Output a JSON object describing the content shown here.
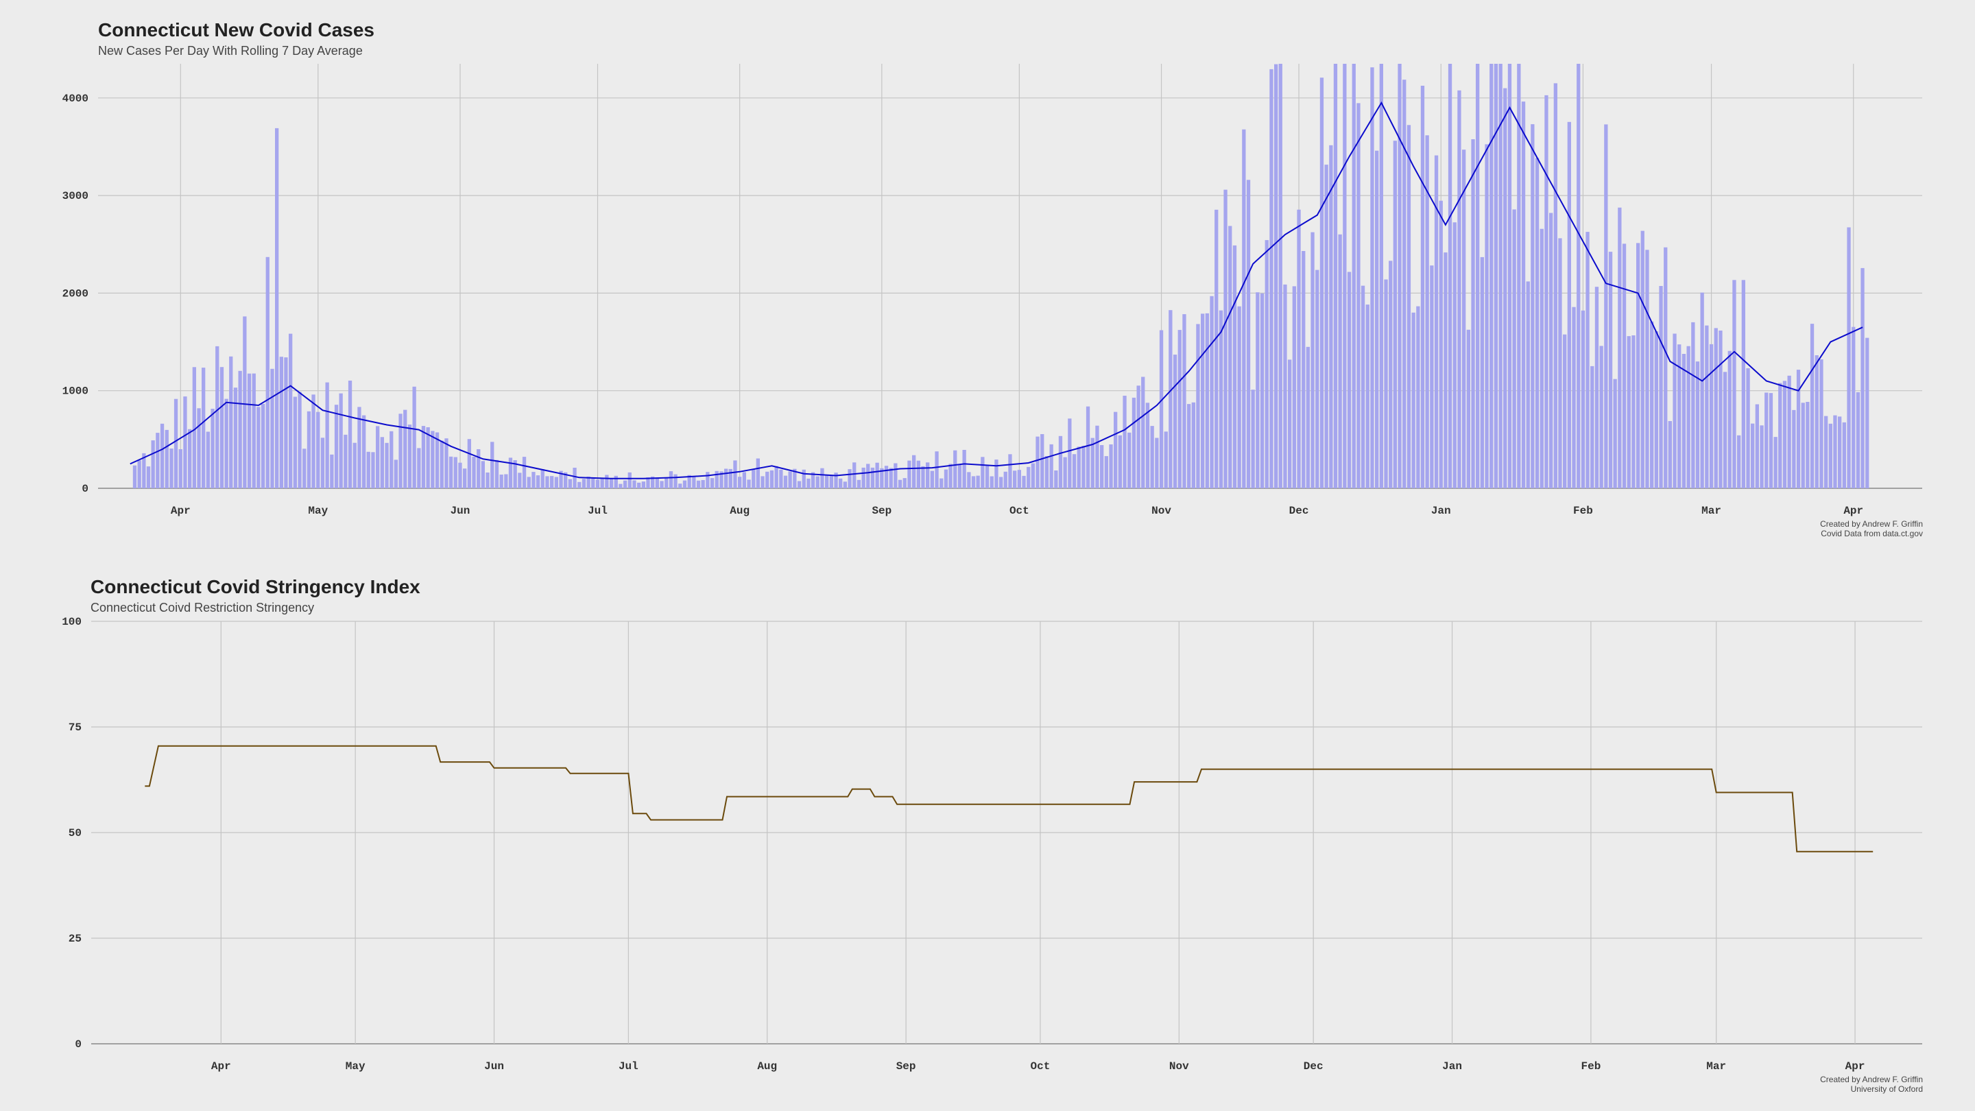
{
  "charts": {
    "cases": {
      "title": "Connecticut New Covid Cases",
      "subtitle": "New Cases Per Day With Rolling 7 Day Average",
      "caption_line1": "Created by Andrew F. Griffin",
      "caption_line2": "Covid Data from data.ct.gov",
      "bar_color": "#a5a5ee",
      "line_color": "#0b0bcc"
    },
    "stringency": {
      "title": "Connecticut Covid Stringency Index",
      "subtitle": "Connecticut Coivd Restriction Stringency",
      "caption_line1": "Created by Andrew F. Griffin",
      "caption_line2": "University of Oxford",
      "line_color": "#6b4a0c"
    }
  },
  "chart_data": [
    {
      "type": "bar",
      "x_axis": "date",
      "x_range": [
        "2020-03-14",
        "2021-04-16"
      ],
      "xticks": [
        "Apr",
        "May",
        "Jun",
        "Jul",
        "Aug",
        "Sep",
        "Oct",
        "Nov",
        "Dec",
        "Jan",
        "Feb",
        "Mar",
        "Apr"
      ],
      "xtick_dates": [
        "2020-04-01",
        "2020-05-01",
        "2020-06-01",
        "2020-07-01",
        "2020-08-01",
        "2020-09-01",
        "2020-10-01",
        "2020-11-01",
        "2020-12-01",
        "2021-01-01",
        "2021-02-01",
        "2021-03-01",
        "2021-04-01"
      ],
      "ylim": [
        0,
        4350
      ],
      "yticks": [
        0,
        1000,
        2000,
        3000,
        4000
      ],
      "grid": true,
      "series": [
        {
          "kind": "bar",
          "keypoints": [
            [
              "2020-03-22",
              200
            ],
            [
              "2020-03-29",
              550
            ],
            [
              "2020-04-05",
              900
            ],
            [
              "2020-04-12",
              1000
            ],
            [
              "2020-04-19",
              950
            ],
            [
              "2020-04-22",
              2050
            ],
            [
              "2020-04-26",
              900
            ],
            [
              "2020-05-03",
              750
            ],
            [
              "2020-05-10",
              700
            ],
            [
              "2020-05-17",
              650
            ],
            [
              "2020-05-24",
              550
            ],
            [
              "2020-05-31",
              380
            ],
            [
              "2020-06-07",
              270
            ],
            [
              "2020-06-14",
              230
            ],
            [
              "2020-06-21",
              160
            ],
            [
              "2020-06-28",
              100
            ],
            [
              "2020-07-05",
              90
            ],
            [
              "2020-07-12",
              90
            ],
            [
              "2020-07-19",
              100
            ],
            [
              "2020-07-26",
              130
            ],
            [
              "2020-08-02",
              170
            ],
            [
              "2020-08-09",
              170
            ],
            [
              "2020-08-16",
              140
            ],
            [
              "2020-08-23",
              130
            ],
            [
              "2020-08-30",
              170
            ],
            [
              "2020-09-06",
              180
            ],
            [
              "2020-09-13",
              210
            ],
            [
              "2020-09-20",
              220
            ],
            [
              "2020-09-27",
              250
            ],
            [
              "2020-10-04",
              280
            ],
            [
              "2020-10-11",
              380
            ],
            [
              "2020-10-18",
              500
            ],
            [
              "2020-10-25",
              650
            ],
            [
              "2020-11-01",
              900
            ],
            [
              "2020-11-08",
              1300
            ],
            [
              "2020-11-15",
              1700
            ],
            [
              "2020-11-22",
              2300
            ],
            [
              "2020-11-29",
              2500
            ],
            [
              "2020-12-06",
              2900
            ],
            [
              "2020-12-13",
              3500
            ],
            [
              "2020-12-20",
              3100
            ],
            [
              "2020-12-27",
              2800
            ],
            [
              "2021-01-03",
              3300
            ],
            [
              "2021-01-10",
              3700
            ],
            [
              "2021-01-17",
              3400
            ],
            [
              "2021-01-24",
              2800
            ],
            [
              "2021-01-31",
              2500
            ],
            [
              "2021-02-07",
              2000
            ],
            [
              "2021-02-14",
              1800
            ],
            [
              "2021-02-21",
              1200
            ],
            [
              "2021-02-28",
              1100
            ],
            [
              "2021-03-07",
              1200
            ],
            [
              "2021-03-14",
              1100
            ],
            [
              "2021-03-21",
              1100
            ],
            [
              "2021-03-28",
              1400
            ],
            [
              "2021-04-04",
              1600
            ]
          ]
        },
        {
          "kind": "line",
          "name": "rolling 7 day average",
          "points": [
            [
              "2020-03-21",
              250
            ],
            [
              "2020-03-28",
              400
            ],
            [
              "2020-04-04",
              600
            ],
            [
              "2020-04-11",
              880
            ],
            [
              "2020-04-18",
              850
            ],
            [
              "2020-04-25",
              1050
            ],
            [
              "2020-05-02",
              800
            ],
            [
              "2020-05-09",
              720
            ],
            [
              "2020-05-16",
              650
            ],
            [
              "2020-05-23",
              600
            ],
            [
              "2020-05-30",
              430
            ],
            [
              "2020-06-06",
              300
            ],
            [
              "2020-06-13",
              250
            ],
            [
              "2020-06-20",
              180
            ],
            [
              "2020-06-27",
              110
            ],
            [
              "2020-07-04",
              100
            ],
            [
              "2020-07-11",
              100
            ],
            [
              "2020-07-18",
              110
            ],
            [
              "2020-07-25",
              130
            ],
            [
              "2020-08-01",
              170
            ],
            [
              "2020-08-08",
              230
            ],
            [
              "2020-08-15",
              150
            ],
            [
              "2020-08-22",
              130
            ],
            [
              "2020-08-29",
              160
            ],
            [
              "2020-09-05",
              200
            ],
            [
              "2020-09-12",
              210
            ],
            [
              "2020-09-19",
              250
            ],
            [
              "2020-09-26",
              230
            ],
            [
              "2020-10-03",
              260
            ],
            [
              "2020-10-10",
              360
            ],
            [
              "2020-10-17",
              450
            ],
            [
              "2020-10-24",
              600
            ],
            [
              "2020-10-31",
              850
            ],
            [
              "2020-11-07",
              1200
            ],
            [
              "2020-11-14",
              1600
            ],
            [
              "2020-11-21",
              2300
            ],
            [
              "2020-11-28",
              2600
            ],
            [
              "2020-12-05",
              2800
            ],
            [
              "2020-12-12",
              3400
            ],
            [
              "2020-12-19",
              3950
            ],
            [
              "2020-12-26",
              3300
            ],
            [
              "2021-01-02",
              2700
            ],
            [
              "2021-01-09",
              3300
            ],
            [
              "2021-01-16",
              3900
            ],
            [
              "2021-01-23",
              3300
            ],
            [
              "2021-01-30",
              2700
            ],
            [
              "2021-02-06",
              2100
            ],
            [
              "2021-02-13",
              2000
            ],
            [
              "2021-02-20",
              1300
            ],
            [
              "2021-02-27",
              1100
            ],
            [
              "2021-03-06",
              1400
            ],
            [
              "2021-03-13",
              1100
            ],
            [
              "2021-03-20",
              1000
            ],
            [
              "2021-03-27",
              1500
            ],
            [
              "2021-04-03",
              1650
            ]
          ]
        }
      ]
    },
    {
      "type": "line",
      "x_axis": "date",
      "x_range": [
        "2020-03-03",
        "2021-04-16"
      ],
      "xticks": [
        "Apr",
        "May",
        "Jun",
        "Jul",
        "Aug",
        "Sep",
        "Oct",
        "Nov",
        "Dec",
        "Jan",
        "Feb",
        "Mar",
        "Apr"
      ],
      "xtick_dates": [
        "2020-04-01",
        "2020-05-01",
        "2020-06-01",
        "2020-07-01",
        "2020-08-01",
        "2020-09-01",
        "2020-10-01",
        "2020-11-01",
        "2020-12-01",
        "2021-01-01",
        "2021-02-01",
        "2021-03-01",
        "2021-04-01"
      ],
      "ylim": [
        0,
        100
      ],
      "yticks": [
        0,
        25,
        50,
        75,
        100
      ],
      "grid": true,
      "points": [
        [
          "2020-03-15",
          61
        ],
        [
          "2020-03-16",
          61
        ],
        [
          "2020-03-18",
          70.5
        ],
        [
          "2020-05-19",
          70.5
        ],
        [
          "2020-05-20",
          66.7
        ],
        [
          "2020-05-31",
          66.7
        ],
        [
          "2020-06-01",
          65.3
        ],
        [
          "2020-06-17",
          65.3
        ],
        [
          "2020-06-18",
          64
        ],
        [
          "2020-07-01",
          64
        ],
        [
          "2020-07-02",
          54.5
        ],
        [
          "2020-07-05",
          54.5
        ],
        [
          "2020-07-06",
          53
        ],
        [
          "2020-07-22",
          53
        ],
        [
          "2020-07-23",
          58.5
        ],
        [
          "2020-08-19",
          58.5
        ],
        [
          "2020-08-20",
          60.3
        ],
        [
          "2020-08-24",
          60.3
        ],
        [
          "2020-08-25",
          58.5
        ],
        [
          "2020-08-29",
          58.5
        ],
        [
          "2020-08-30",
          56.7
        ],
        [
          "2020-10-21",
          56.7
        ],
        [
          "2020-10-22",
          62
        ],
        [
          "2020-11-05",
          62
        ],
        [
          "2020-11-06",
          65
        ],
        [
          "2021-02-28",
          65
        ],
        [
          "2021-03-01",
          59.5
        ],
        [
          "2021-03-18",
          59.5
        ],
        [
          "2021-03-19",
          45.5
        ],
        [
          "2021-04-05",
          45.5
        ]
      ]
    }
  ]
}
